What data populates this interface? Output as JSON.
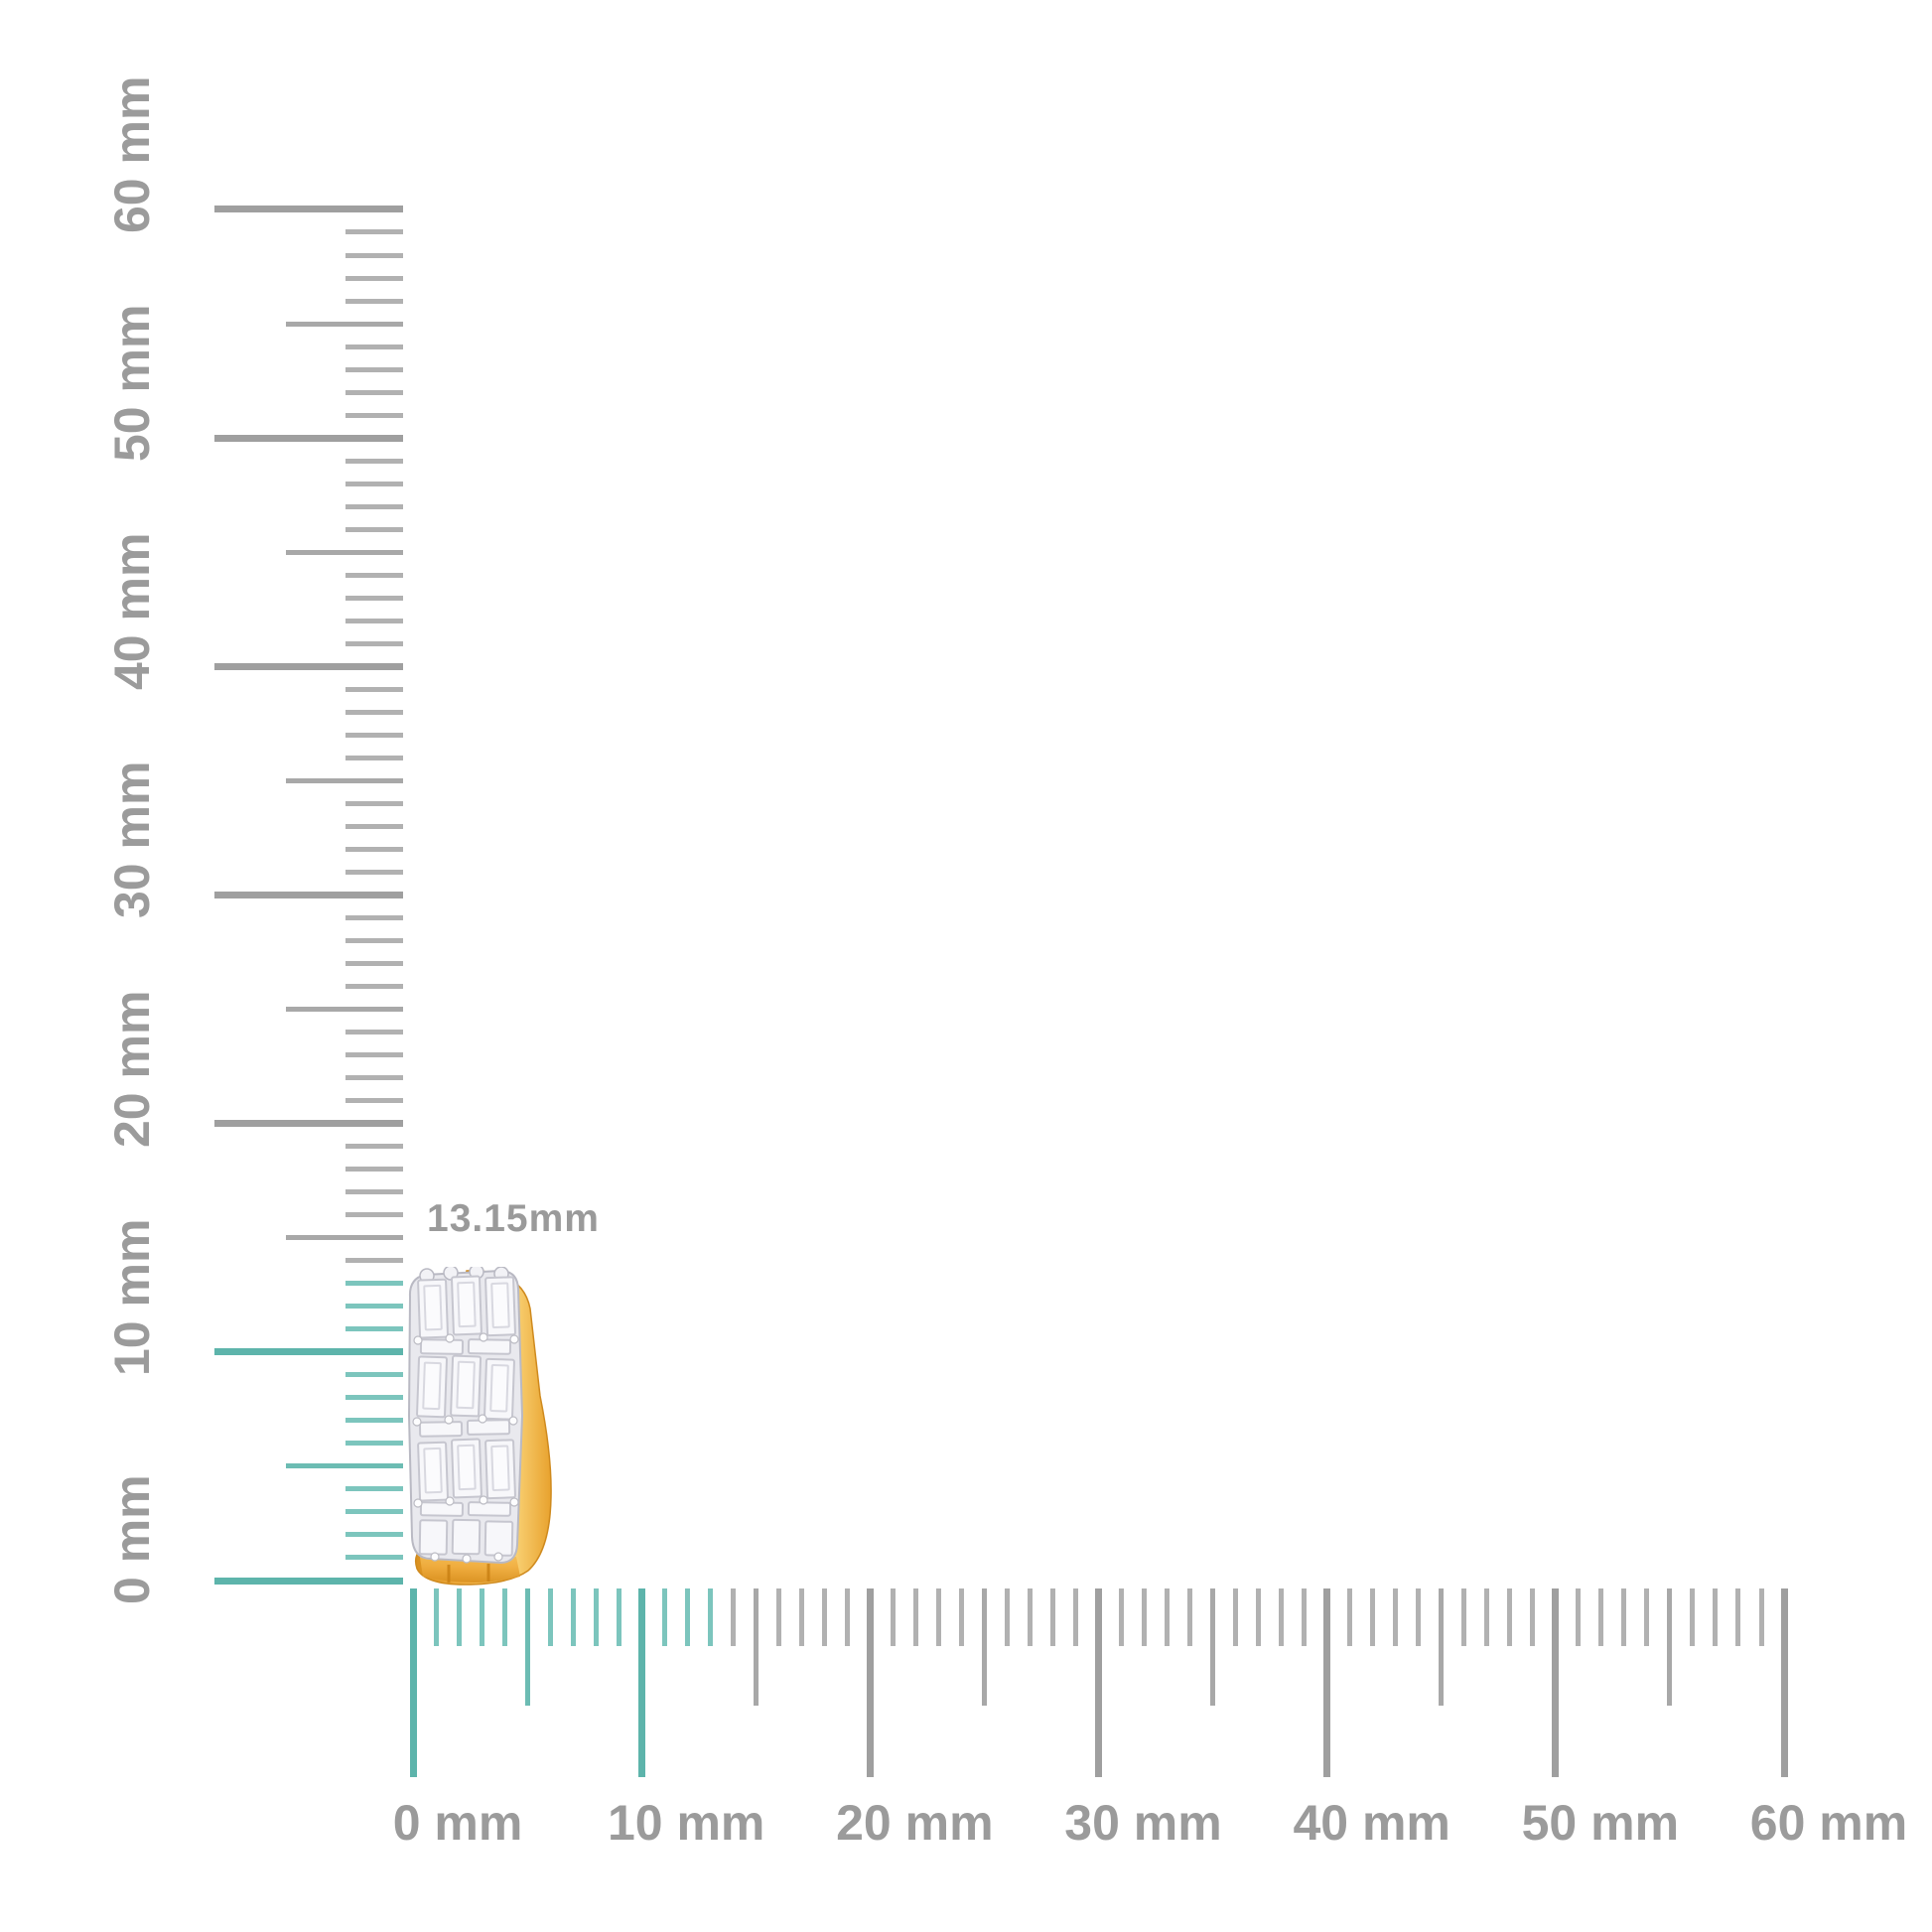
{
  "measurement": {
    "value_label": "13.15mm"
  },
  "rulers": {
    "unit": "mm",
    "min_mm": 0,
    "max_mm": 60,
    "minor_step_mm": 1,
    "half_step_mm": 5,
    "major_step_mm": 10,
    "highlight_extent_mm": 13.15,
    "vertical_labels": [
      "0 mm",
      "10 mm",
      "20 mm",
      "30 mm",
      "40 mm",
      "50 mm",
      "60 mm"
    ],
    "horizontal_labels": [
      "0 mm",
      "10 mm",
      "20 mm",
      "30 mm",
      "40 mm",
      "50 mm",
      "60 mm"
    ]
  },
  "colors": {
    "background": "#ffffff",
    "tick_gray_major": "#9f9f9f",
    "tick_gray_half": "#a8a8a8",
    "tick_gray_minor": "#b1b1b1",
    "tick_teal_major": "#5db4ab",
    "tick_teal_half": "#6cbcb3",
    "tick_teal_minor": "#7cc5bd",
    "ruler_label_gray": "#9b9b9b",
    "measurement_text_gray": "#9a9a9a",
    "gold": "#f0ad3f",
    "gold_highlight": "#fbd77d",
    "gold_shadow": "#d9901f",
    "metal_silver": "#e9e9ee",
    "metal_outline": "#b9b9c3",
    "diamond_white": "#f7f7fa",
    "diamond_facet": "#d8d8e0"
  }
}
